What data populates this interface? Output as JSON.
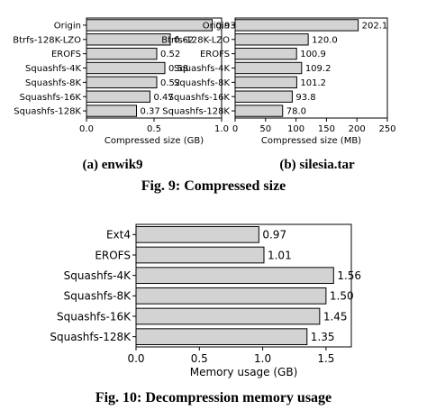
{
  "figures": {
    "fig9": {
      "caption": "Fig. 9: Compressed size",
      "subcaption_a": "(a) enwik9",
      "subcaption_b": "(b) silesia.tar"
    },
    "fig10": {
      "caption": "Fig. 10: Decompression memory usage"
    }
  },
  "chart_data": [
    {
      "id": "enwik9",
      "type": "bar",
      "orientation": "horizontal",
      "categories": [
        "Origin",
        "Btrfs-128K-LZO",
        "EROFS",
        "Squashfs-4K",
        "Squashfs-8K",
        "Squashfs-16K",
        "Squashfs-128K"
      ],
      "values": [
        0.93,
        0.62,
        0.52,
        0.58,
        0.52,
        0.47,
        0.37
      ],
      "value_labels": [
        "0.93",
        "0.62",
        "0.52",
        "0.58",
        "0.52",
        "0.47",
        "0.37"
      ],
      "xlabel": "Compressed size (GB)",
      "xlim": [
        0,
        1.0
      ],
      "xticks": [
        0.0,
        0.5,
        1.0
      ],
      "xtick_labels": [
        "0.0",
        "0.5",
        "1.0"
      ],
      "grid": false,
      "bar_color": "#d3d3d3"
    },
    {
      "id": "silesia",
      "type": "bar",
      "orientation": "horizontal",
      "categories": [
        "Origin",
        "Btrfs-128K-LZO",
        "EROFS",
        "Squashfs-4K",
        "Squashfs-8K",
        "Squashfs-16K",
        "Squashfs-128K"
      ],
      "values": [
        202.1,
        120.0,
        100.9,
        109.2,
        101.2,
        93.8,
        78.0
      ],
      "value_labels": [
        "202.1",
        "120.0",
        "100.9",
        "109.2",
        "101.2",
        "93.8",
        "78.0"
      ],
      "xlabel": "Compressed size (MB)",
      "xlim": [
        0,
        250
      ],
      "xticks": [
        0,
        50,
        100,
        150,
        200,
        250
      ],
      "xtick_labels": [
        "0",
        "50",
        "100",
        "150",
        "200",
        "250"
      ],
      "grid": false,
      "bar_color": "#d3d3d3"
    },
    {
      "id": "memory",
      "type": "bar",
      "orientation": "horizontal",
      "categories": [
        "Ext4",
        "EROFS",
        "Squashfs-4K",
        "Squashfs-8K",
        "Squashfs-16K",
        "Squashfs-128K"
      ],
      "values": [
        0.97,
        1.01,
        1.56,
        1.5,
        1.45,
        1.35
      ],
      "value_labels": [
        "0.97",
        "1.01",
        "1.56",
        "1.50",
        "1.45",
        "1.35"
      ],
      "xlabel": "Memory usage (GB)",
      "xlim": [
        0,
        1.7
      ],
      "xticks": [
        0.0,
        0.5,
        1.0,
        1.5
      ],
      "xtick_labels": [
        "0.0",
        "0.5",
        "1.0",
        "1.5"
      ],
      "grid": false,
      "bar_color": "#d3d3d3"
    }
  ]
}
